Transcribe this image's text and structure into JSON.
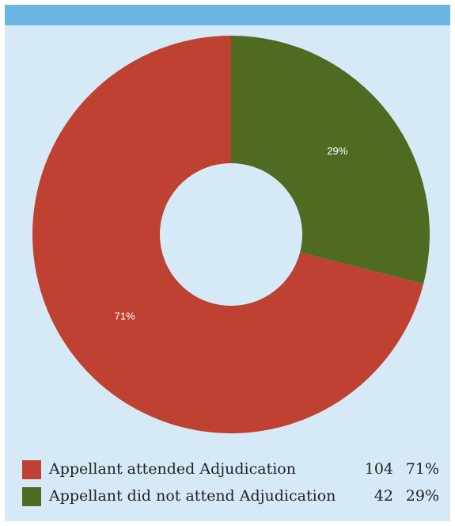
{
  "chart_data": {
    "type": "donut",
    "categories": [
      "Appellant attended Adjudication",
      "Appellant did not attend Adjudication"
    ],
    "counts": [
      104,
      42
    ],
    "values": [
      71,
      29
    ],
    "value_labels": [
      "71%",
      "29%"
    ],
    "colors": [
      "#bf4132",
      "#4e6b21"
    ]
  }
}
